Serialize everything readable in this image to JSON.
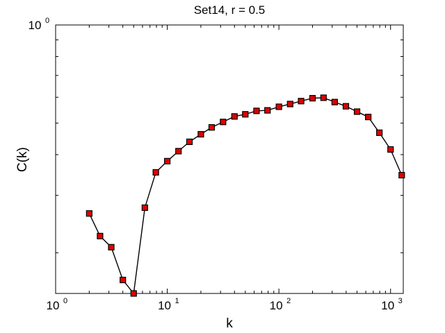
{
  "chart_data": {
    "type": "line",
    "title": "Set14, r = 0.5",
    "xlabel": "k",
    "ylabel": "C(k)",
    "xscale": "log",
    "yscale": "log",
    "xlim": [
      1,
      1300
    ],
    "ylim": [
      0.15,
      1.0
    ],
    "grid": false,
    "legend": "none",
    "x_ticks": [
      {
        "value": 1,
        "base": "10",
        "exp": "0"
      },
      {
        "value": 10,
        "base": "10",
        "exp": "1"
      },
      {
        "value": 100,
        "base": "10",
        "exp": "2"
      },
      {
        "value": 1000,
        "base": "10",
        "exp": "3"
      }
    ],
    "y_ticks": [
      {
        "value": 1,
        "base": "10",
        "exp": "0"
      }
    ],
    "marker": "square",
    "marker_color": "#dd0000",
    "line_color": "#000000",
    "series": [
      {
        "x": [
          2,
          2.5,
          3.15,
          4,
          5,
          6.3,
          7.9,
          10,
          12.6,
          15.8,
          20,
          25,
          31.6,
          40,
          50,
          63,
          79,
          100,
          126,
          158,
          200,
          251,
          316,
          398,
          501,
          631,
          794,
          1000,
          1259
        ],
        "y": [
          0.264,
          0.225,
          0.208,
          0.165,
          0.15,
          0.275,
          0.353,
          0.382,
          0.41,
          0.438,
          0.462,
          0.485,
          0.504,
          0.524,
          0.532,
          0.545,
          0.547,
          0.561,
          0.572,
          0.584,
          0.596,
          0.598,
          0.58,
          0.563,
          0.542,
          0.522,
          0.467,
          0.415,
          0.346
        ]
      }
    ]
  }
}
